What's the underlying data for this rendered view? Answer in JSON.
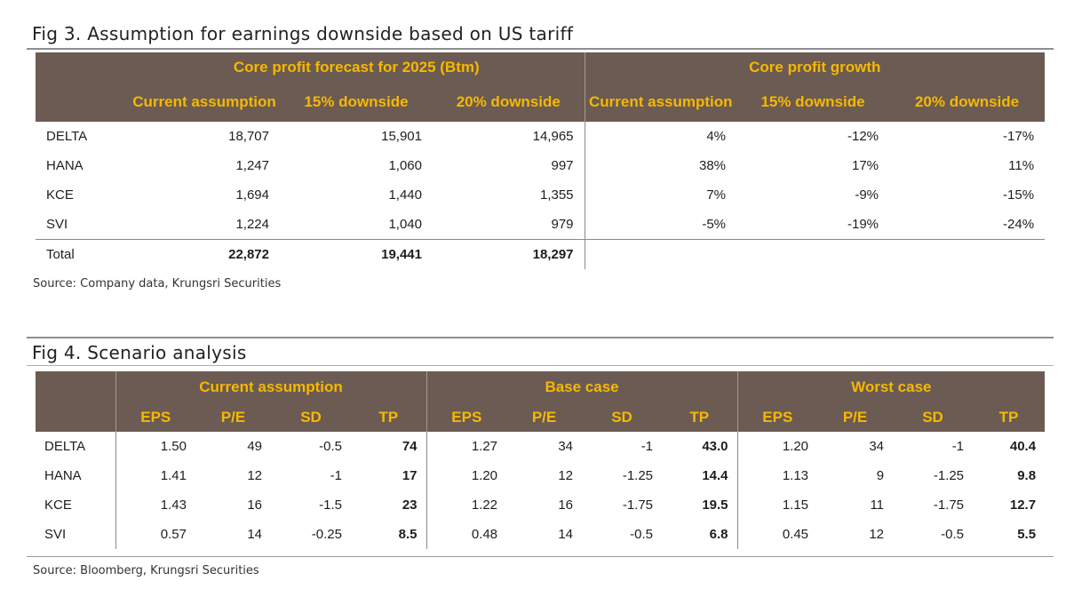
{
  "fig3": {
    "title": "Fig 3. Assumption for earnings downside based on US tariff",
    "group_headers": [
      "Core profit forecast for 2025 (Btm)",
      "Core profit growth"
    ],
    "sub_headers": [
      "Current assumption",
      "15% downside",
      "20% downside",
      "Current assumption",
      "15% downside",
      "20% downside"
    ],
    "rows": [
      {
        "name": "DELTA",
        "cells": [
          "18,707",
          "15,901",
          "14,965",
          "4%",
          "-12%",
          "-17%"
        ]
      },
      {
        "name": "HANA",
        "cells": [
          "1,247",
          "1,060",
          "997",
          "38%",
          "17%",
          "11%"
        ]
      },
      {
        "name": "KCE",
        "cells": [
          "1,694",
          "1,440",
          "1,355",
          "7%",
          "-9%",
          "-15%"
        ]
      },
      {
        "name": "SVI",
        "cells": [
          "1,224",
          "1,040",
          "979",
          "-5%",
          "-19%",
          "-24%"
        ]
      },
      {
        "name": "Total",
        "cells": [
          "22,872",
          "19,441",
          "18,297",
          "",
          "",
          ""
        ]
      }
    ],
    "source": "Source: Company data, Krungsri Securities"
  },
  "fig4": {
    "title": "Fig 4.  Scenario analysis",
    "group_headers": [
      "Current assumption",
      "Base case",
      "Worst case"
    ],
    "sub_headers": [
      "EPS",
      "P/E",
      "SD",
      "TP",
      "EPS",
      "P/E",
      "SD",
      "TP",
      "EPS",
      "P/E",
      "SD",
      "TP"
    ],
    "rows": [
      {
        "name": "DELTA",
        "cells": [
          "1.50",
          "49",
          "-0.5",
          "74",
          "1.27",
          "34",
          "-1",
          "43.0",
          "1.20",
          "34",
          "-1",
          "40.4"
        ]
      },
      {
        "name": "HANA",
        "cells": [
          "1.41",
          "12",
          "-1",
          "17",
          "1.20",
          "12",
          "-1.25",
          "14.4",
          "1.13",
          "9",
          "-1.25",
          "9.8"
        ]
      },
      {
        "name": "KCE",
        "cells": [
          "1.43",
          "16",
          "-1.5",
          "23",
          "1.22",
          "16",
          "-1.75",
          "19.5",
          "1.15",
          "11",
          "-1.75",
          "12.7"
        ]
      },
      {
        "name": "SVI",
        "cells": [
          "0.57",
          "14",
          "-0.25",
          "8.5",
          "0.48",
          "14",
          "-0.5",
          "6.8",
          "0.45",
          "12",
          "-0.5",
          "5.5"
        ]
      }
    ],
    "source": "Source: Bloomberg, Krungsri Securities"
  },
  "colors": {
    "header_bg": "#6b5b53",
    "header_text": "#f6b800"
  }
}
